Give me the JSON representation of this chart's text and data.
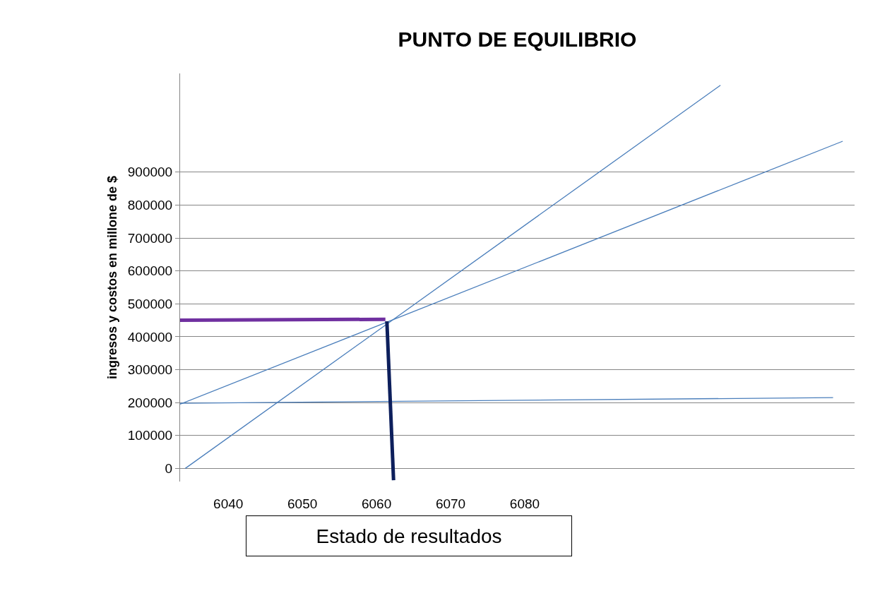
{
  "chart_data": {
    "type": "line",
    "title": "PUNTO DE EQUILIBRIO",
    "xlabel": "Estado de resultados",
    "ylabel": "ingresos y costos en millone de $",
    "xlim": [
      6033.5,
      6124.5
    ],
    "xticks": [
      6040,
      6050,
      6060,
      6070,
      6080
    ],
    "ylim": [
      -40000,
      1200000
    ],
    "yticks": [
      0,
      100000,
      200000,
      300000,
      400000,
      500000,
      600000,
      700000,
      800000,
      900000
    ],
    "grid": "y",
    "marker": "none",
    "line_style": "solid",
    "series": [
      {
        "color": "#4a7ebb",
        "x": [
          6034.2,
          6106.4
        ],
        "values": [
          0,
          1164000
        ]
      },
      {
        "color": "#4a7ebb",
        "x": [
          6033.5,
          6122.9
        ],
        "values": [
          195000,
          994000
        ]
      },
      {
        "color": "#4a7ebb",
        "x": [
          6033.5,
          6121.6
        ],
        "values": [
          198000,
          215000
        ]
      },
      {
        "color": "#7030a0",
        "x": [
          6033.5,
          6061.2
        ],
        "values": [
          450000,
          453000
        ]
      },
      {
        "color": "#0d1f5c",
        "x": [
          6061.4,
          6062.3
        ],
        "values": [
          447000,
          -36000
        ]
      }
    ]
  }
}
